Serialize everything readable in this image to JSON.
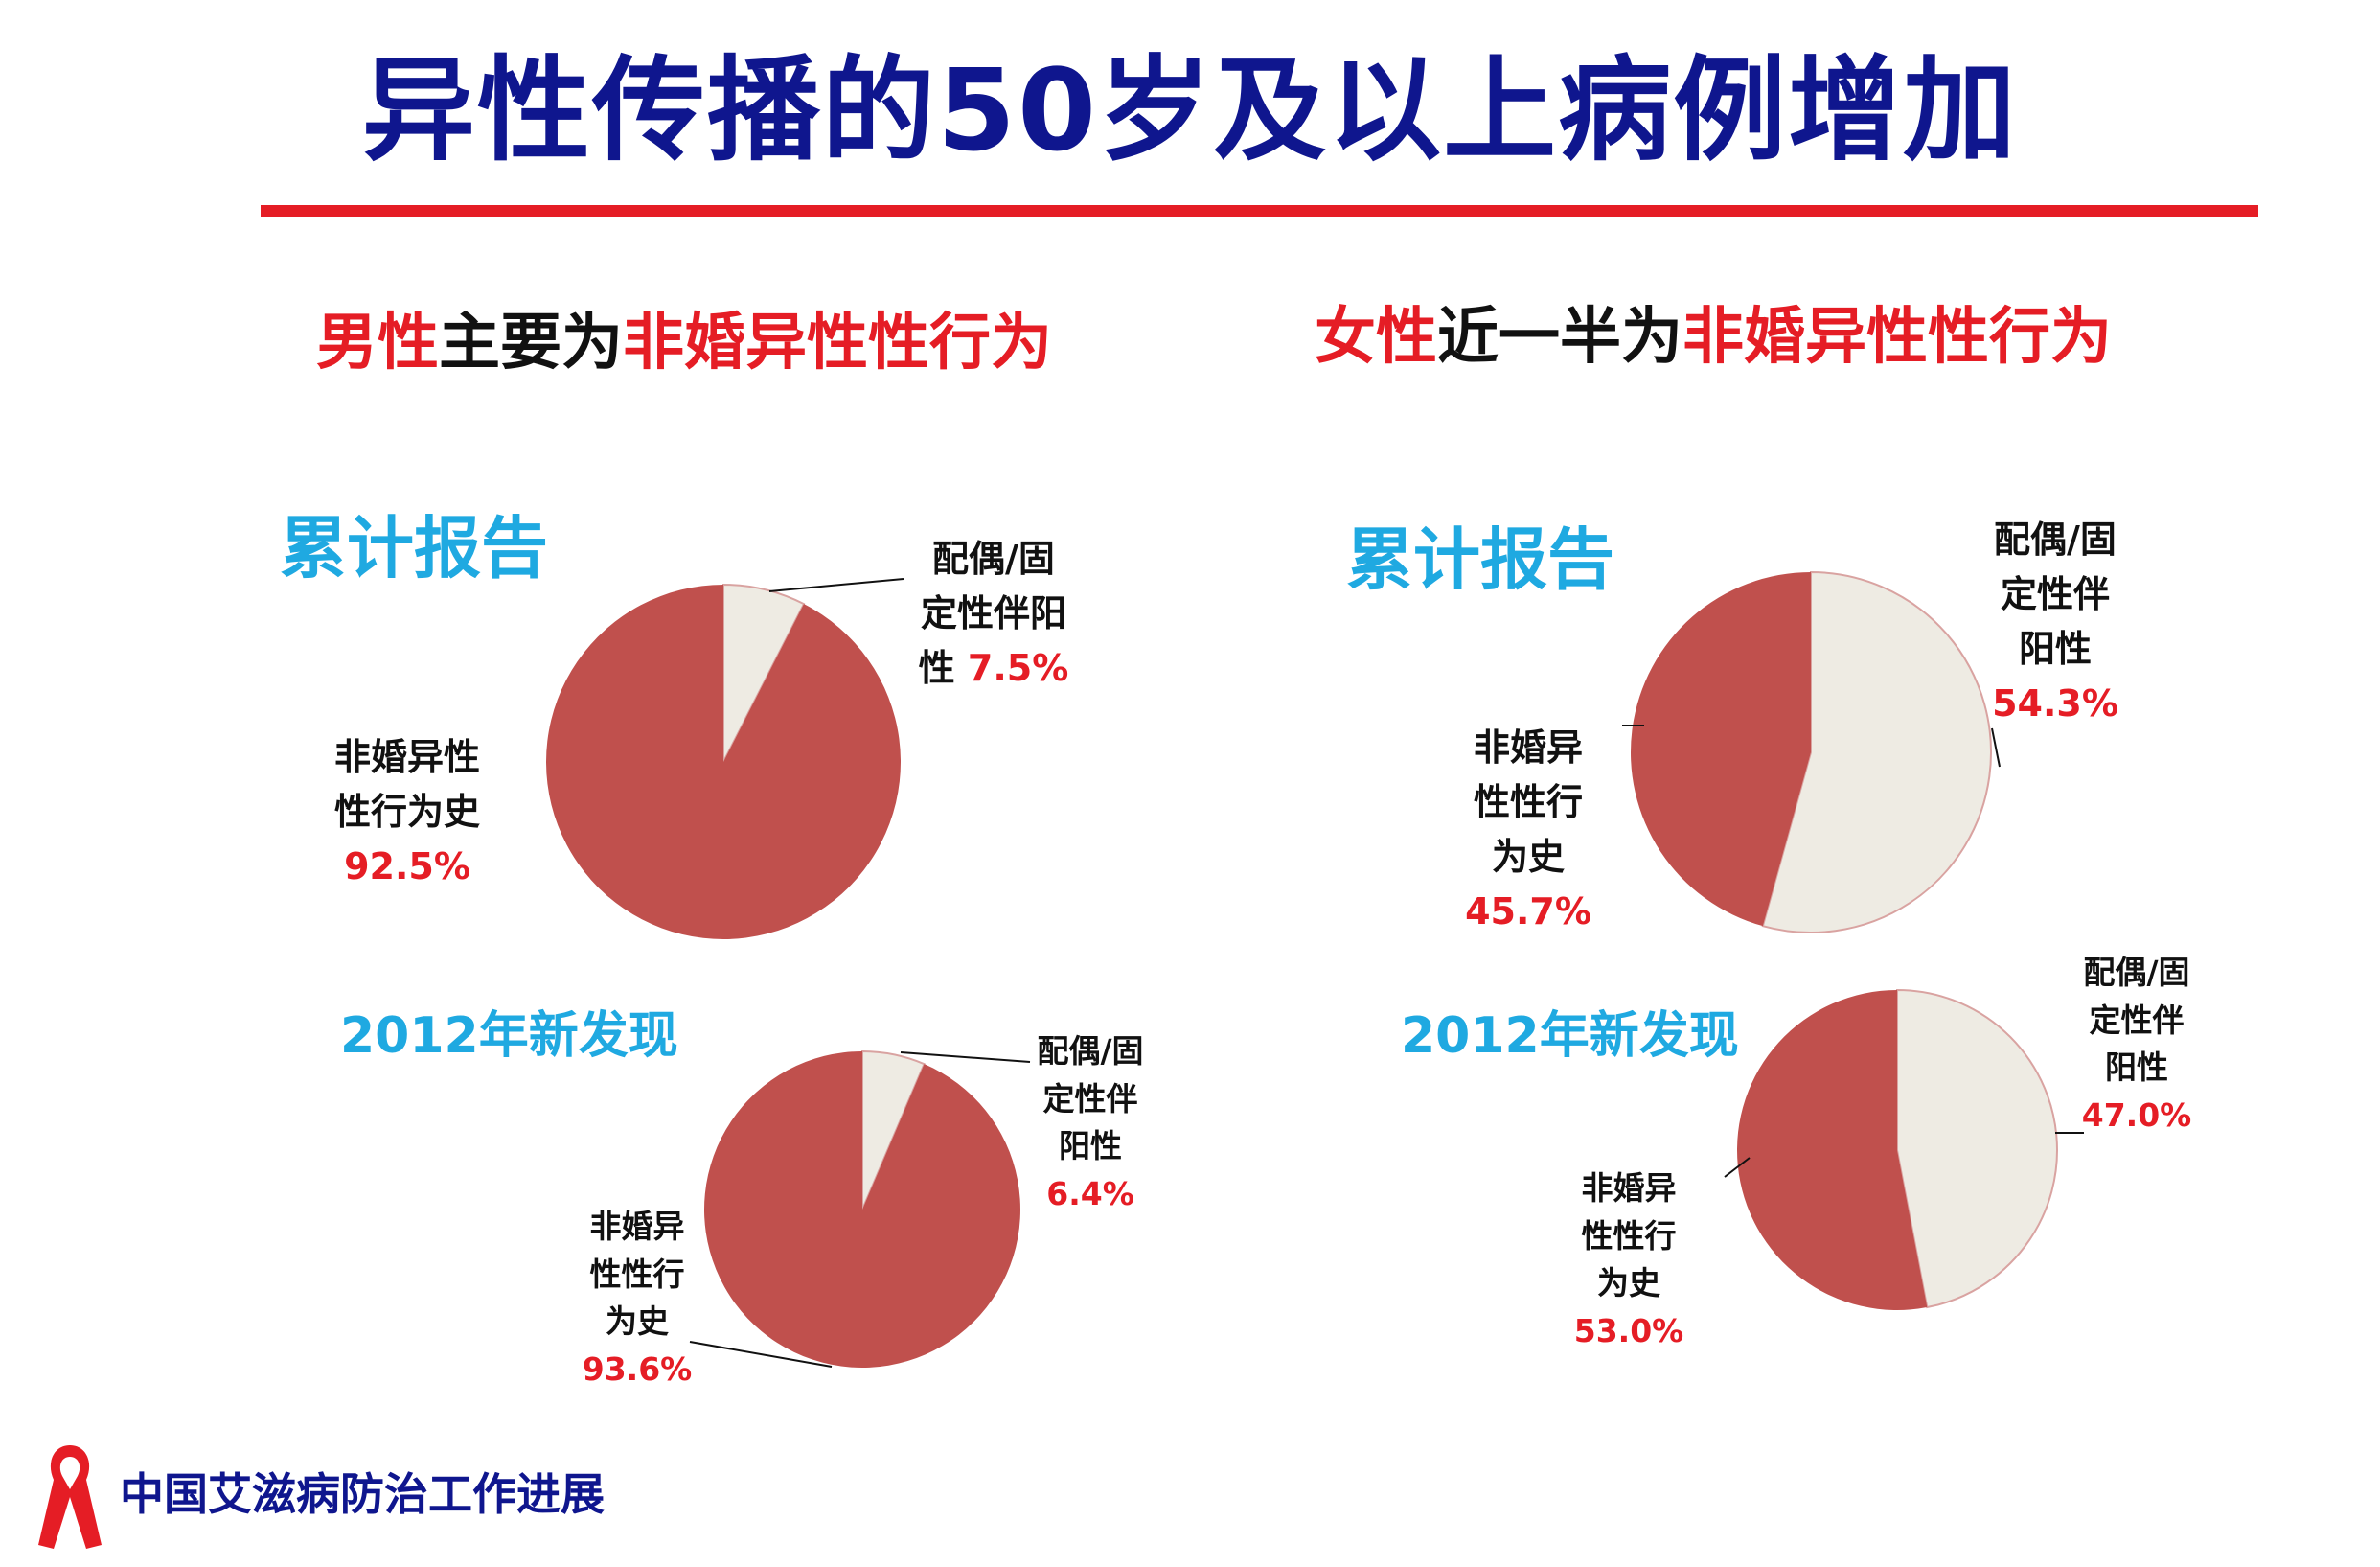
{
  "header": {
    "title": "异性传播的50岁及以上病例增加",
    "left_subtitle": {
      "part1": "男性",
      "part2": "主要为",
      "part3": "非婚异性性行为"
    },
    "right_subtitle": {
      "part1": "女性",
      "part2": "近一半为",
      "part3": "非婚异性性行为"
    }
  },
  "sections": {
    "cumulative": "累计报告",
    "new2012": "2012年新发现"
  },
  "footer": {
    "text": "中国艾滋病防治工作进展"
  },
  "colors": {
    "red_slice": "#c0504d",
    "beige_slice": "#eeebe3",
    "title_blue": "#0f168e",
    "accent_red": "#e51d25",
    "section_blue": "#1fa9e1"
  },
  "chart_data": [
    {
      "type": "pie",
      "title": "累计报告",
      "group": "男性",
      "slices": [
        {
          "label": "配偶/固定性伴阳性",
          "value": 7.5,
          "display": "7.5%"
        },
        {
          "label": "非婚异性性行为史",
          "value": 92.5,
          "display": "92.5%"
        }
      ]
    },
    {
      "type": "pie",
      "title": "2012年新发现",
      "group": "男性",
      "slices": [
        {
          "label": "配偶/固定性伴阳性",
          "value": 6.4,
          "display": "6.4%"
        },
        {
          "label": "非婚异性性行为史",
          "value": 93.6,
          "display": "93.6%"
        }
      ]
    },
    {
      "type": "pie",
      "title": "累计报告",
      "group": "女性",
      "slices": [
        {
          "label": "配偶/固定性伴阳性",
          "value": 54.3,
          "display": "54.3%"
        },
        {
          "label": "非婚异性性行为史",
          "value": 45.7,
          "display": "45.7%"
        }
      ]
    },
    {
      "type": "pie",
      "title": "2012年新发现",
      "group": "女性",
      "slices": [
        {
          "label": "配偶/固定性伴阳性",
          "value": 47.0,
          "display": "47.0%"
        },
        {
          "label": "非婚异性性行为史",
          "value": 53.0,
          "display": "53.0%"
        }
      ]
    }
  ],
  "labels": {
    "c0": {
      "a1": "配偶/固",
      "a2": "定性伴阳",
      "a3": "性"
    },
    "c0b": {
      "b1": "非婚异性",
      "b2": "性行为史"
    },
    "c1": {
      "a1": "配偶/固",
      "a2": "定性伴",
      "a3": "阳性"
    },
    "c1b": {
      "b1": "非婚异",
      "b2": "性性行",
      "b3": "为史"
    },
    "c2": {
      "a1": "配偶/固",
      "a2": "定性伴",
      "a3": "阳性"
    },
    "c2b": {
      "b1": "非婚异",
      "b2": "性性行",
      "b3": "为史"
    },
    "c3": {
      "a1": "配偶/固",
      "a2": "定性伴",
      "a3": "阳性"
    },
    "c3b": {
      "b1": "非婚异",
      "b2": "性性行",
      "b3": "为史"
    }
  }
}
